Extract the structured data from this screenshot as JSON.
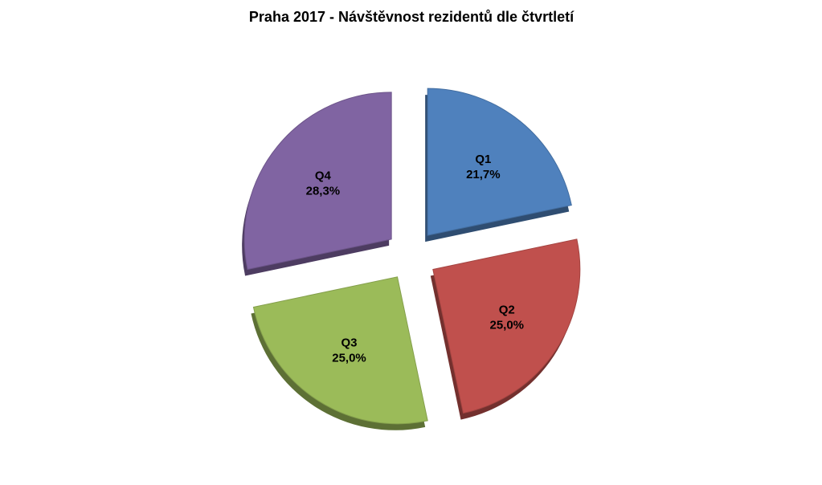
{
  "chart_data": {
    "type": "pie",
    "title": "Praha 2017 - Návštěvnost rezidentů dle čtvrtletí",
    "categories": [
      "Q1",
      "Q2",
      "Q3",
      "Q4"
    ],
    "values": [
      21.7,
      25.0,
      25.0,
      28.3
    ],
    "value_labels": [
      "21,7%",
      "25,0%",
      "25,0%",
      "28,3%"
    ],
    "colors": [
      "#4f81bd",
      "#c0504d",
      "#9bbb59",
      "#8064a2"
    ]
  }
}
